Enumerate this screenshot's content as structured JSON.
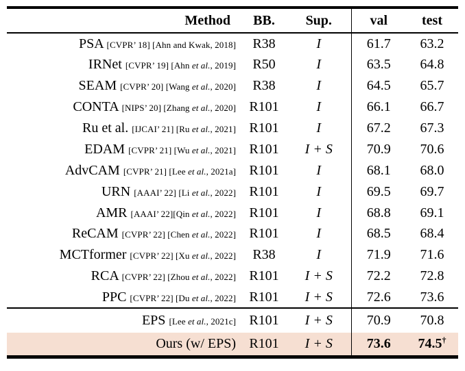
{
  "header": {
    "columns": [
      "Method",
      "BB.",
      "Sup.",
      "val",
      "test"
    ]
  },
  "table": {
    "groups": [
      {
        "rows": [
          {
            "method": "PSA",
            "cite": "[CVPR’ 18] [Ahn and Kwak, 2018]",
            "bb": "R38",
            "sup": "I",
            "val": "61.7",
            "test": "63.2"
          },
          {
            "method": "IRNet",
            "cite": "[CVPR’ 19] [Ahn et al., 2019]",
            "bb": "R50",
            "sup": "I",
            "val": "63.5",
            "test": "64.8"
          },
          {
            "method": "SEAM",
            "cite": "[CVPR’ 20] [Wang et al., 2020]",
            "bb": "R38",
            "sup": "I",
            "val": "64.5",
            "test": "65.7"
          },
          {
            "method": "CONTA",
            "cite": "[NIPS’ 20] [Zhang et al., 2020]",
            "bb": "R101",
            "sup": "I",
            "val": "66.1",
            "test": "66.7"
          },
          {
            "method": "Ru et al.",
            "cite": "[IJCAI’ 21] [Ru et al., 2021]",
            "bb": "R101",
            "sup": "I",
            "val": "67.2",
            "test": "67.3"
          },
          {
            "method": "EDAM",
            "cite": "[CVPR’ 21] [Wu et al., 2021]",
            "bb": "R101",
            "sup": "I + S",
            "val": "70.9",
            "test": "70.6"
          },
          {
            "method": "AdvCAM",
            "cite": "[CVPR’ 21] [Lee et al., 2021a]",
            "bb": "R101",
            "sup": "I",
            "val": "68.1",
            "test": "68.0"
          },
          {
            "method": "URN",
            "cite": "[AAAI’ 22] [Li et al., 2022]",
            "bb": "R101",
            "sup": "I",
            "val": "69.5",
            "test": "69.7"
          },
          {
            "method": "AMR",
            "cite": "[AAAI’ 22][Qin et al., 2022]",
            "bb": "R101",
            "sup": "I",
            "val": "68.8",
            "test": "69.1"
          },
          {
            "method": "ReCAM",
            "cite": "[CVPR’ 22] [Chen et al., 2022]",
            "bb": "R101",
            "sup": "I",
            "val": "68.5",
            "test": "68.4"
          },
          {
            "method": "MCTformer",
            "cite": "[CVPR’ 22] [Xu et al., 2022]",
            "bb": "R38",
            "sup": "I",
            "val": "71.9",
            "test": "71.6"
          },
          {
            "method": "RCA",
            "cite": "[CVPR’ 22] [Zhou et al., 2022]",
            "bb": "R101",
            "sup": "I + S",
            "val": "72.2",
            "test": "72.8"
          },
          {
            "method": "PPC",
            "cite": "[CVPR’ 22] [Du et al., 2022]",
            "bb": "R101",
            "sup": "I + S",
            "val": "72.6",
            "test": "73.6"
          }
        ]
      },
      {
        "rows": [
          {
            "method": "EPS",
            "cite": "[Lee et al., 2021c]",
            "bb": "R101",
            "sup": "I + S",
            "val": "70.9",
            "test": "70.8"
          },
          {
            "method": "Ours (w/ EPS)",
            "cite": "",
            "bb": "R101",
            "sup": "I + S",
            "val": "73.6",
            "test": "74.5",
            "dagger": "†",
            "bold_scores": true,
            "highlight": true
          }
        ]
      }
    ]
  },
  "colors": {
    "highlight_row": "#f6dfd2",
    "rule": "#000000",
    "text": "#000000",
    "background": "#ffffff"
  }
}
